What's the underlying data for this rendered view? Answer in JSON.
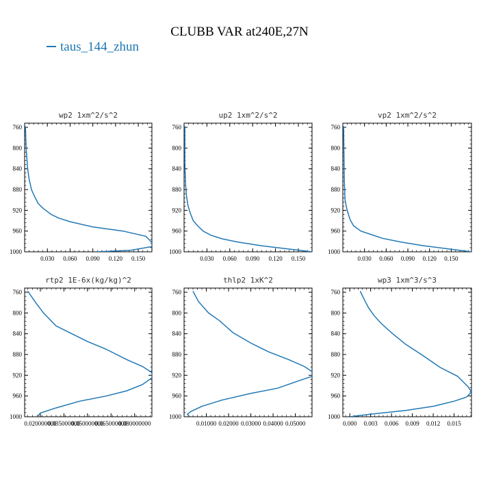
{
  "figure": {
    "title": "CLUBB VAR at240E,27N",
    "legend_label": "taus_144_zhun",
    "series_color": "#1f77b4"
  },
  "chart_data": [
    {
      "type": "line",
      "title": "wp2  1xm^2/s^2",
      "series_name": "taus_144_zhun",
      "xlim": [
        0,
        0.168
      ],
      "ylim": [
        1000,
        752
      ],
      "x_ticks": [
        0.03,
        0.06,
        0.09,
        0.12,
        0.15
      ],
      "x_tick_labels": [
        "0.030",
        "0.060",
        "0.090",
        "0.120",
        "0.150"
      ],
      "y_ticks": [
        760,
        800,
        840,
        880,
        920,
        960,
        1000
      ],
      "x": [
        0.095,
        0.14,
        0.168,
        0.168,
        0.16,
        0.13,
        0.09,
        0.06,
        0.045,
        0.035,
        0.025,
        0.018,
        0.013,
        0.009,
        0.006,
        0.004,
        0.002,
        0.001
      ],
      "y": [
        1000,
        997,
        990,
        982,
        970,
        960,
        952,
        942,
        935,
        928,
        917,
        907,
        893,
        880,
        860,
        840,
        800,
        758
      ]
    },
    {
      "type": "line",
      "title": "up2  1xm^2/s^2",
      "series_name": "taus_144_zhun",
      "xlim": [
        0,
        0.168
      ],
      "ylim": [
        1000,
        752
      ],
      "x_ticks": [
        0.03,
        0.06,
        0.09,
        0.12,
        0.15
      ],
      "x_tick_labels": [
        "0.030",
        "0.060",
        "0.090",
        "0.120",
        "0.150"
      ],
      "y_ticks": [
        760,
        800,
        840,
        880,
        920,
        960,
        1000
      ],
      "x": [
        0.168,
        0.14,
        0.1,
        0.07,
        0.05,
        0.035,
        0.025,
        0.018,
        0.012,
        0.008,
        0.005,
        0.003,
        0.002,
        0.001,
        0.001
      ],
      "y": [
        1000,
        995,
        988,
        981,
        975,
        968,
        960,
        950,
        940,
        925,
        910,
        890,
        870,
        830,
        758
      ]
    },
    {
      "type": "line",
      "title": "vp2  1xm^2/s^2",
      "series_name": "taus_144_zhun",
      "xlim": [
        0,
        0.178
      ],
      "ylim": [
        1000,
        752
      ],
      "x_ticks": [
        0.03,
        0.06,
        0.09,
        0.12,
        0.15
      ],
      "x_tick_labels": [
        "0.030",
        "0.060",
        "0.090",
        "0.120",
        "0.150"
      ],
      "y_ticks": [
        760,
        800,
        840,
        880,
        920,
        960,
        1000
      ],
      "x": [
        0.178,
        0.15,
        0.11,
        0.08,
        0.055,
        0.04,
        0.025,
        0.015,
        0.01,
        0.006,
        0.003,
        0.002,
        0.001
      ],
      "y": [
        1000,
        995,
        988,
        981,
        974,
        967,
        960,
        950,
        938,
        920,
        900,
        860,
        758
      ]
    },
    {
      "type": "line",
      "title": "rtp2  1E-6x(kg/kg)^2",
      "series_name": "taus_144_zhun",
      "xlim": [
        0.01,
        0.091
      ],
      "ylim": [
        1000,
        752
      ],
      "x_ticks": [
        0.02,
        0.035,
        0.05,
        0.065,
        0.08
      ],
      "x_tick_labels": [
        "0.020000000",
        "0.035000000",
        "0.050000000",
        "0.065000000",
        "0.080000000"
      ],
      "y_ticks": [
        760,
        800,
        840,
        880,
        920,
        960,
        1000
      ],
      "x": [
        0.018,
        0.02,
        0.03,
        0.045,
        0.062,
        0.075,
        0.085,
        0.091,
        0.091,
        0.085,
        0.075,
        0.062,
        0.05,
        0.04,
        0.03,
        0.022,
        0.017,
        0.012
      ],
      "y": [
        1000,
        993,
        983,
        970,
        960,
        950,
        938,
        925,
        915,
        903,
        890,
        870,
        855,
        840,
        825,
        800,
        780,
        758
      ]
    },
    {
      "type": "line",
      "title": "thlp2  1xK^2",
      "series_name": "taus_144_zhun",
      "xlim": [
        0,
        0.0575
      ],
      "ylim": [
        1000,
        752
      ],
      "x_ticks": [
        0.01,
        0.02,
        0.03,
        0.04,
        0.05
      ],
      "x_tick_labels": [
        "0.01000",
        "0.02000",
        "0.03000",
        "0.04000",
        "0.05000"
      ],
      "y_ticks": [
        760,
        800,
        840,
        880,
        920,
        960,
        1000
      ],
      "x": [
        0.0025,
        0.0015,
        0.003,
        0.008,
        0.017,
        0.03,
        0.042,
        0.052,
        0.0575,
        0.0575,
        0.054,
        0.047,
        0.038,
        0.03,
        0.022,
        0.016,
        0.011,
        0.0065,
        0.004
      ],
      "y": [
        1000,
        995,
        990,
        980,
        968,
        955,
        945,
        930,
        922,
        913,
        903,
        890,
        875,
        858,
        838,
        815,
        800,
        778,
        758
      ]
    },
    {
      "type": "line",
      "title": "wp3  1xm^3/s^3",
      "series_name": "taus_144_zhun",
      "xlim": [
        -0.001,
        0.0175
      ],
      "ylim": [
        1000,
        752
      ],
      "x_ticks": [
        0,
        0.003,
        0.006,
        0.009,
        0.012,
        0.015
      ],
      "x_tick_labels": [
        "0.000",
        "0.003",
        "0.006",
        "0.009",
        "0.012",
        "0.015"
      ],
      "y_ticks": [
        760,
        800,
        840,
        880,
        920,
        960,
        1000
      ],
      "x": [
        0,
        0.003,
        0.008,
        0.012,
        0.015,
        0.0168,
        0.0175,
        0.017,
        0.0155,
        0.013,
        0.0105,
        0.008,
        0.006,
        0.0045,
        0.0035,
        0.0027,
        0.002,
        0.0015
      ],
      "y": [
        1000,
        995,
        988,
        980,
        970,
        962,
        952,
        942,
        922,
        905,
        882,
        860,
        838,
        820,
        805,
        790,
        772,
        758
      ]
    }
  ]
}
